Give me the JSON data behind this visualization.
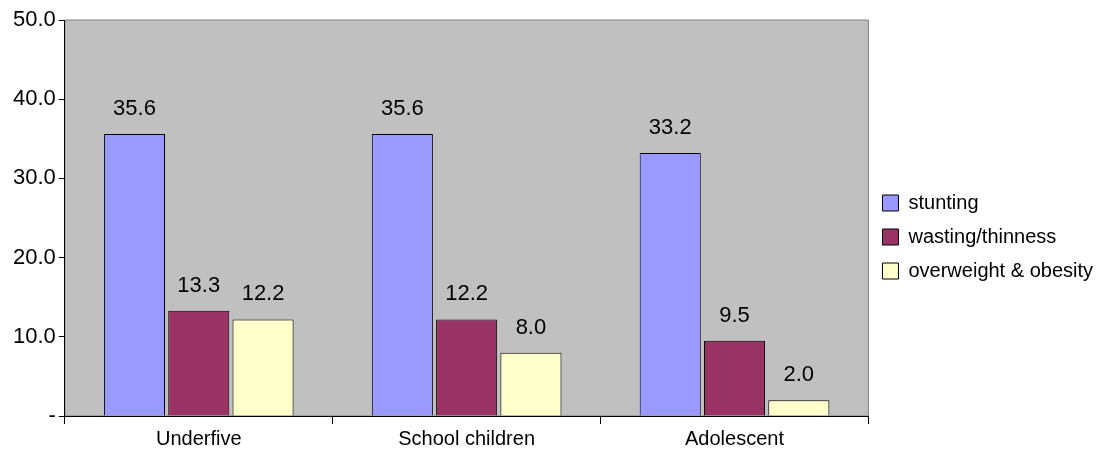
{
  "chart_data": {
    "type": "bar",
    "categories": [
      "Underfive",
      "School children",
      "Adolescent"
    ],
    "series": [
      {
        "name": "stunting",
        "color": "#9999ff",
        "values": [
          35.6,
          35.6,
          33.2
        ],
        "value_labels": [
          "35.6",
          "35.6",
          "33.2"
        ]
      },
      {
        "name": "wasting/thinness",
        "color": "#993366",
        "values": [
          13.3,
          12.2,
          9.5
        ],
        "value_labels": [
          "13.3",
          "12.2",
          "9.5"
        ]
      },
      {
        "name": "overweight & obesity",
        "color": "#ffffcc",
        "values": [
          12.2,
          8.0,
          2.0
        ],
        "value_labels": [
          "12.2",
          "8.0",
          "2.0"
        ]
      }
    ],
    "ylim": [
      0,
      50
    ],
    "yticks": [
      {
        "value": 0,
        "label": "-"
      },
      {
        "value": 10,
        "label": "10.0"
      },
      {
        "value": 20,
        "label": "20.0"
      },
      {
        "value": 30,
        "label": "30.0"
      },
      {
        "value": 40,
        "label": "40.0"
      },
      {
        "value": 50,
        "label": "50.0"
      }
    ],
    "grid": false,
    "legend": "right"
  }
}
